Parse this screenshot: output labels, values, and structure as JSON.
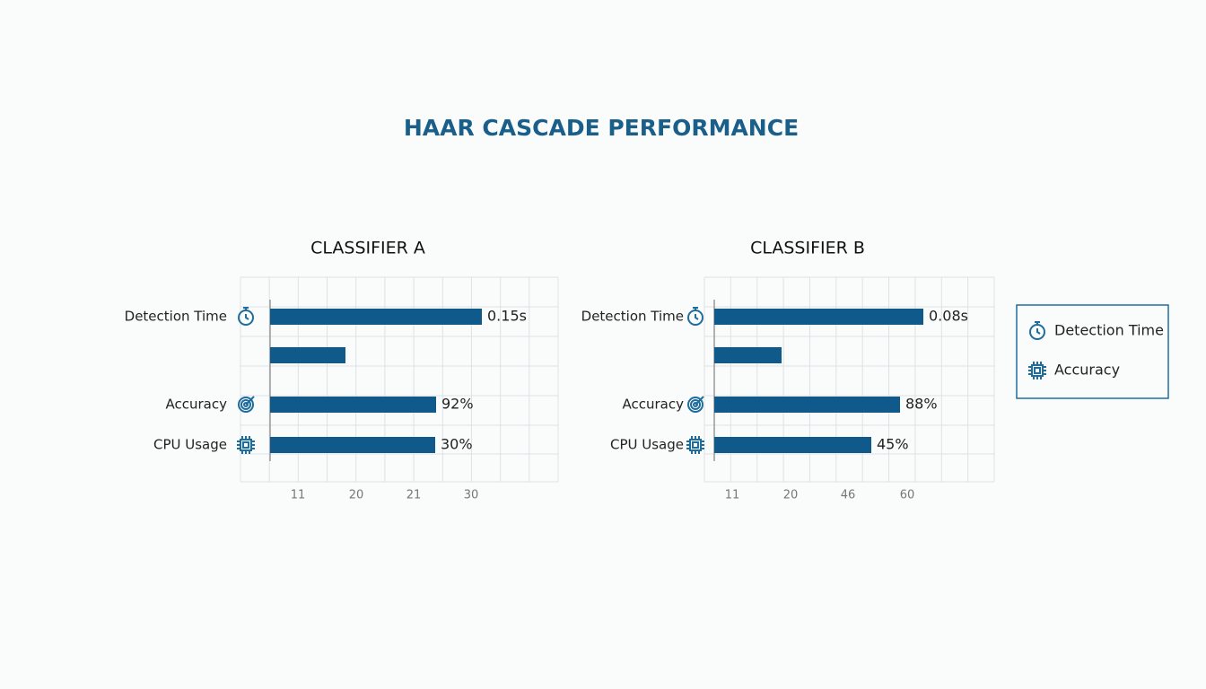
{
  "title": "HAAR CASCADE PERFORMANCE",
  "panels": [
    {
      "title": "CLASSIFIER A",
      "rows": [
        {
          "label": "Detection Time",
          "value": "0.15s"
        },
        {
          "label": "Accuracy",
          "value": "92%"
        },
        {
          "label": "CPU Usage",
          "value": "30%"
        }
      ],
      "axis_labels": [
        "11",
        "20",
        "21",
        "30"
      ]
    },
    {
      "title": "CLASSIFIER B",
      "rows": [
        {
          "label": "Detection Time",
          "value": "0.08s"
        },
        {
          "label": "Accuracy",
          "value": "88%"
        },
        {
          "label": "CPU Usage",
          "value": "45%"
        }
      ],
      "axis_labels": [
        "11",
        "20",
        "46",
        "60"
      ]
    }
  ],
  "legend": [
    "Detection Time",
    "Accuracy"
  ]
}
